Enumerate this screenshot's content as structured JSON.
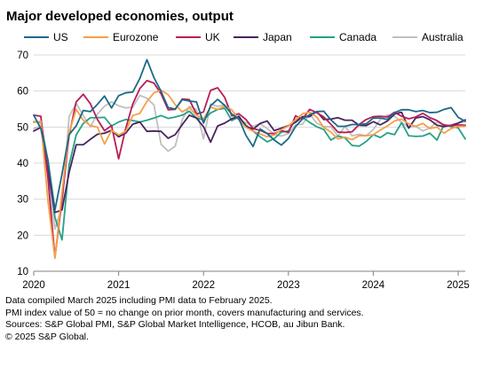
{
  "colors": {
    "US": "#1b6a88",
    "Eurozone": "#f5a047",
    "UK": "#b81d57",
    "Japan": "#4a245f",
    "Canada": "#25a287",
    "Australia": "#c0c0c0",
    "grid": "#d9d9d9",
    "axis": "#808080"
  },
  "chart_data": {
    "type": "line",
    "title": "Major developed economies, output",
    "xlabel": "",
    "ylabel": "",
    "xlim": [
      "2020-01",
      "2025-02"
    ],
    "ylim": [
      10,
      70
    ],
    "xticks": [
      "2020",
      "2021",
      "2022",
      "2023",
      "2024",
      "2025"
    ],
    "yticks": [
      10,
      20,
      30,
      40,
      50,
      60,
      70
    ],
    "grid": true,
    "legend": "top",
    "series": [
      {
        "name": "US",
        "color": "#1b6a88",
        "start": "2020-01",
        "values": [
          53.3,
          49.6,
          40.9,
          27.0,
          37.0,
          47.9,
          50.3,
          54.6,
          54.3,
          56.3,
          58.6,
          55.3,
          58.7,
          59.5,
          59.7,
          63.5,
          68.7,
          63.7,
          59.9,
          55.4,
          55.0,
          57.6,
          57.2,
          57.0,
          51.1,
          55.9,
          57.7,
          56.0,
          53.6,
          52.3,
          47.7,
          44.6,
          49.5,
          48.2,
          46.4,
          45.0,
          46.8,
          50.1,
          52.3,
          53.4,
          54.3,
          54.4,
          52.0,
          50.2,
          50.2,
          50.7,
          50.7,
          50.9,
          52.5,
          52.5,
          52.1,
          54.0,
          54.8,
          54.8,
          54.3,
          54.6,
          54.0,
          54.1,
          54.9,
          55.4,
          52.7,
          51.6
        ]
      },
      {
        "name": "Eurozone",
        "color": "#f5a047",
        "start": "2020-01",
        "values": [
          51.3,
          51.6,
          29.7,
          13.6,
          31.9,
          48.5,
          54.9,
          51.9,
          50.4,
          50.0,
          45.3,
          49.1,
          47.8,
          48.8,
          53.2,
          53.8,
          57.1,
          59.5,
          60.2,
          59.0,
          56.2,
          54.2,
          55.4,
          53.3,
          52.3,
          55.5,
          54.9,
          55.8,
          54.8,
          52.0,
          49.9,
          48.9,
          48.1,
          47.3,
          47.8,
          49.3,
          50.3,
          52.0,
          53.7,
          54.1,
          52.8,
          49.9,
          48.6,
          46.7,
          47.2,
          46.5,
          47.6,
          47.6,
          47.9,
          49.2,
          50.3,
          51.7,
          52.2,
          50.9,
          50.2,
          51.0,
          49.6,
          50.0,
          48.3,
          49.6,
          50.2,
          50.2
        ]
      },
      {
        "name": "UK",
        "color": "#b81d57",
        "start": "2020-01",
        "values": [
          53.3,
          53.0,
          36.0,
          13.8,
          30.0,
          47.7,
          57.0,
          59.1,
          56.5,
          52.1,
          49.0,
          50.4,
          41.2,
          49.6,
          56.4,
          60.7,
          62.9,
          62.2,
          59.2,
          54.8,
          54.9,
          57.8,
          57.6,
          53.6,
          54.2,
          60.2,
          60.9,
          58.2,
          53.1,
          53.7,
          52.1,
          49.6,
          49.1,
          48.2,
          48.2,
          49.0,
          48.5,
          53.1,
          52.2,
          54.9,
          54.0,
          52.8,
          50.8,
          48.6,
          48.5,
          48.7,
          50.7,
          52.1,
          52.9,
          53.0,
          52.8,
          54.1,
          53.0,
          52.3,
          52.8,
          53.8,
          52.6,
          51.8,
          50.5,
          50.4,
          50.6,
          50.5
        ]
      },
      {
        "name": "Japan",
        "color": "#4a245f",
        "start": "2020-01",
        "values": [
          48.9,
          49.9,
          37.8,
          26.3,
          27.0,
          37.4,
          45.1,
          45.1,
          46.6,
          48.0,
          48.3,
          49.1,
          47.3,
          48.3,
          50.8,
          51.4,
          48.8,
          48.9,
          48.8,
          46.9,
          47.9,
          50.7,
          53.3,
          52.5,
          50.1,
          45.8,
          50.3,
          51.1,
          52.3,
          53.0,
          50.2,
          49.4,
          51.0,
          51.7,
          49.0,
          49.7,
          50.4,
          51.3,
          52.9,
          52.9,
          54.3,
          52.1,
          52.2,
          52.6,
          51.9,
          51.9,
          50.5,
          50.4,
          51.5,
          50.6,
          51.7,
          53.6,
          54.1,
          49.7,
          52.5,
          52.9,
          52.0,
          50.5,
          50.1,
          50.5,
          51.1,
          52.0
        ]
      },
      {
        "name": "Canada",
        "color": "#25a287",
        "start": "2020-01",
        "values": [
          51.5,
          51.3,
          40.7,
          24.9,
          18.7,
          39.5,
          47.8,
          51.0,
          52.6,
          52.6,
          52.7,
          50.3,
          51.4,
          52.1,
          51.8,
          51.4,
          51.9,
          52.5,
          53.2,
          52.4,
          52.8,
          53.3,
          54.4,
          52.5,
          52.0,
          53.9,
          54.9,
          55.2,
          51.8,
          52.8,
          50.5,
          48.9,
          47.3,
          45.9,
          46.8,
          48.6,
          48.9,
          51.9,
          52.7,
          51.3,
          50.1,
          49.3,
          46.4,
          47.5,
          47.0,
          44.9,
          44.7,
          46.0,
          47.9,
          47.1,
          48.4,
          47.9,
          51.2,
          47.6,
          47.4,
          47.5,
          48.3,
          46.4,
          50.7,
          50.1,
          49.8,
          46.7
        ]
      },
      {
        "name": "Australia",
        "color": "#c0c0c0",
        "start": "2020-01",
        "values": [
          49.6,
          50.2,
          37.4,
          21.7,
          28.1,
          52.9,
          56.6,
          53.2,
          50.1,
          53.6,
          55.8,
          57.0,
          55.9,
          55.3,
          55.5,
          58.8,
          58.0,
          56.1,
          45.2,
          43.3,
          44.7,
          52.1,
          55.7,
          54.9,
          46.7,
          56.4,
          55.7,
          56.2,
          53.4,
          52.0,
          51.2,
          50.2,
          50.9,
          49.6,
          48.0,
          47.5,
          48.2,
          50.6,
          50.8,
          53.6,
          51.1,
          50.1,
          50.1,
          47.5,
          50.2,
          47.6,
          48.0,
          47.6,
          49.3,
          52.1,
          53.3,
          53.0,
          51.3,
          49.9,
          50.2,
          48.9,
          49.8,
          51.4,
          50.5,
          50.2,
          51.1,
          51.5
        ]
      }
    ]
  },
  "footer": {
    "line1": "Data compiled March 2025 including PMI data to February 2025.",
    "line2": "PMI index value of 50 = no change on prior month, covers manufacturing and services.",
    "line3": "Sources: S&P Global PMI, S&P Global Market Intelligence, HCOB, au Jibun Bank.",
    "line4": "© 2025 S&P Global."
  }
}
